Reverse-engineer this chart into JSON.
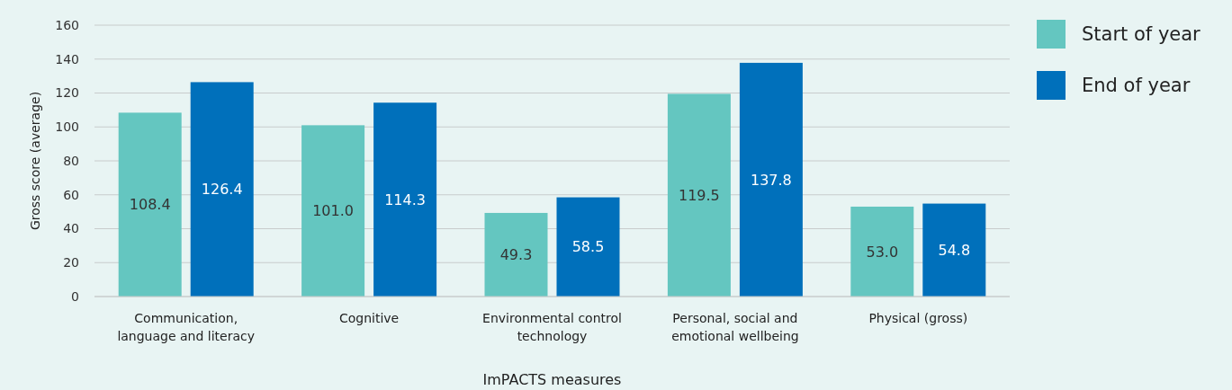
{
  "chart_data": {
    "type": "bar",
    "xlabel": "ImPACTS measures",
    "ylabel": "Gross score (average)",
    "categories": [
      "Communication, language and literacy",
      "Cognitive",
      "Environmental control technology",
      "Personal, social and emotional wellbeing",
      "Physical (gross)"
    ],
    "series": [
      {
        "name": "Start of year",
        "color": "#64c6c0",
        "values": [
          108.4,
          101.0,
          49.3,
          119.5,
          53.0
        ],
        "value_labels": [
          "108.4",
          "101.0",
          "49.3",
          "119.5",
          "53.0"
        ]
      },
      {
        "name": "End of year",
        "color": "#0070bb",
        "values": [
          126.4,
          114.3,
          58.5,
          137.8,
          54.8
        ],
        "value_labels": [
          "126.4",
          "114.3",
          "58.5",
          "137.8",
          "54.8"
        ]
      }
    ],
    "ylim": [
      0,
      160
    ],
    "yticks": [
      0,
      20,
      40,
      60,
      80,
      100,
      120,
      140,
      160
    ],
    "grid": "y",
    "legend": "top right"
  }
}
